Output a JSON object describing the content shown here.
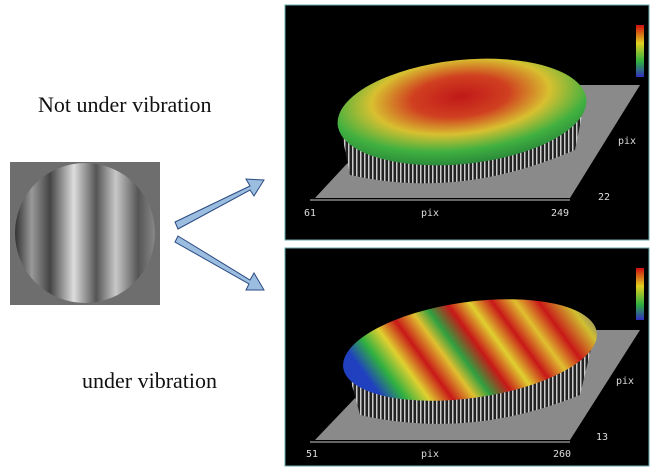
{
  "labels": {
    "top": "Not under vibration",
    "bottom": "under vibration"
  },
  "panels": [
    {
      "x_start": 61,
      "x_label": "pix",
      "x_end": 249,
      "y_start": 22,
      "y_label": "pix"
    },
    {
      "x_start": 51,
      "x_label": "pix",
      "x_end": 260,
      "y_start": 13,
      "y_label": "pix"
    }
  ]
}
